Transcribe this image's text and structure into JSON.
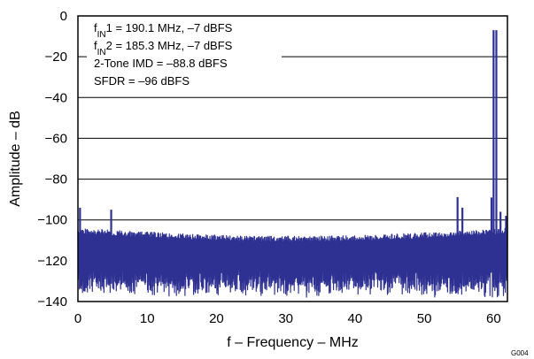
{
  "chart_data": {
    "type": "line",
    "title": "",
    "xlabel": "f – Frequency – MHz",
    "ylabel": "Amplitude – dB",
    "xlim": [
      0,
      62
    ],
    "ylim": [
      -140,
      0
    ],
    "x_ticks": [
      "0",
      "10",
      "20",
      "30",
      "40",
      "50",
      "60"
    ],
    "y_ticks": [
      "0",
      "−20",
      "−40",
      "−60",
      "−80",
      "−100",
      "−120",
      "−140"
    ],
    "grid": true,
    "annotations": [
      {
        "prefix": "f",
        "sub": "IN",
        "rest": "1 = 190.1 MHz, –7 dBFS"
      },
      {
        "prefix": "f",
        "sub": "IN",
        "rest": "2 = 185.3 MHz, –7 dBFS"
      },
      {
        "prefix": "",
        "sub": "",
        "rest": "2-Tone IMD = –88.8 dBFS"
      },
      {
        "prefix": "",
        "sub": "",
        "rest": "SFDR = –96 dBFS"
      }
    ],
    "series_color": "#2e3192",
    "noise_floor": {
      "upper_db": [
        -104,
        -108
      ],
      "lower_db": [
        -130,
        -138
      ]
    },
    "peaks": [
      {
        "x": 0.3,
        "y": -94
      },
      {
        "x": 4.8,
        "y": -95
      },
      {
        "x": 54.8,
        "y": -88.8
      },
      {
        "x": 55.5,
        "y": -94
      },
      {
        "x": 59.7,
        "y": -89
      },
      {
        "x": 60.0,
        "y": -7
      },
      {
        "x": 60.4,
        "y": -7
      },
      {
        "x": 61.0,
        "y": -96
      },
      {
        "x": 61.8,
        "y": -98
      }
    ],
    "figure_id": "G004"
  }
}
